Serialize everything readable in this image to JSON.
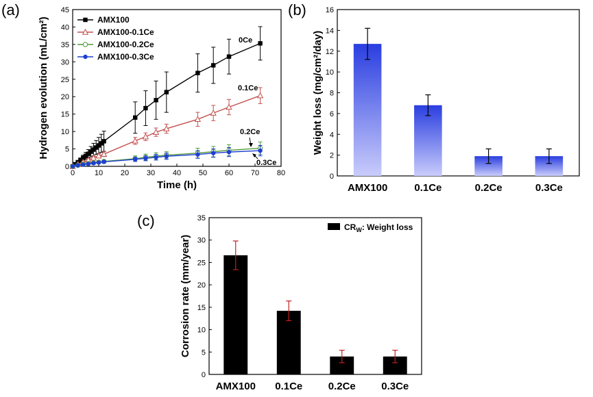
{
  "chart_data": [
    {
      "panel": "(a)",
      "type": "line",
      "xlabel": "Time (h)",
      "ylabel": "Hydrogen evolution (mL/cm²)",
      "xlim": [
        0,
        80
      ],
      "ylim": [
        0,
        45
      ],
      "xticks": [
        0,
        10,
        20,
        30,
        40,
        50,
        60,
        70,
        80
      ],
      "yticks": [
        0,
        5,
        10,
        15,
        20,
        25,
        30,
        35,
        40,
        45
      ],
      "legend_position": "top-left",
      "series": [
        {
          "name": "AMX100",
          "color": "#000000",
          "marker": "filled-square",
          "annotation": "0Ce",
          "x": [
            0,
            1,
            2,
            3,
            4,
            5,
            6,
            7,
            8,
            9,
            10,
            11,
            12,
            24,
            28,
            32,
            36,
            48,
            54,
            60,
            72
          ],
          "y": [
            0,
            0.6,
            1.2,
            1.8,
            2.4,
            3.0,
            3.6,
            4.2,
            4.8,
            5.4,
            6.0,
            6.6,
            7.2,
            14.0,
            16.7,
            19.0,
            21.3,
            26.8,
            29.0,
            31.5,
            35.3
          ],
          "err": [
            0,
            0.2,
            0.4,
            0.6,
            0.8,
            1.0,
            1.2,
            1.5,
            1.8,
            2.0,
            2.3,
            2.6,
            2.9,
            4.5,
            5.0,
            5.5,
            5.8,
            5.5,
            5.2,
            5.0,
            4.8
          ]
        },
        {
          "name": "AMX100-0.1Ce",
          "color": "#c0504d",
          "marker": "open-triangle",
          "annotation": "0.1Ce",
          "x": [
            0,
            2,
            4,
            6,
            8,
            10,
            12,
            24,
            28,
            32,
            36,
            48,
            54,
            60,
            72
          ],
          "y": [
            0,
            0.6,
            1.2,
            1.8,
            2.4,
            3.0,
            3.5,
            7.3,
            8.5,
            9.8,
            10.8,
            13.5,
            15.3,
            17.0,
            20.3
          ],
          "err": [
            0,
            0.2,
            0.3,
            0.4,
            0.5,
            0.6,
            0.7,
            1.0,
            1.1,
            1.2,
            1.3,
            2.0,
            2.2,
            2.2,
            2.3
          ]
        },
        {
          "name": "AMX100-0.2Ce",
          "color": "#4f9a3a",
          "marker": "open-circle",
          "annotation": "0.2Ce",
          "x": [
            0,
            2,
            4,
            6,
            8,
            10,
            12,
            24,
            28,
            32,
            36,
            48,
            54,
            60,
            72
          ],
          "y": [
            0,
            0.3,
            0.6,
            0.8,
            1.0,
            1.2,
            1.4,
            2.2,
            2.6,
            2.9,
            3.2,
            3.8,
            4.2,
            4.6,
            5.2
          ],
          "err": [
            0,
            0.1,
            0.2,
            0.2,
            0.3,
            0.3,
            0.4,
            0.8,
            0.9,
            1.0,
            1.0,
            1.4,
            1.5,
            1.6,
            1.8
          ]
        },
        {
          "name": "AMX100-0.3Ce",
          "color": "#1f3fd1",
          "marker": "filled-circle",
          "annotation": "0.3Ce",
          "x": [
            0,
            2,
            4,
            6,
            8,
            10,
            12,
            24,
            28,
            32,
            36,
            48,
            54,
            60,
            72
          ],
          "y": [
            0,
            0.3,
            0.5,
            0.7,
            0.9,
            1.1,
            1.3,
            2.0,
            2.3,
            2.6,
            2.9,
            3.4,
            3.8,
            4.1,
            4.5
          ],
          "err": [
            0,
            0.1,
            0.2,
            0.2,
            0.3,
            0.3,
            0.4,
            0.6,
            0.7,
            0.8,
            0.9,
            1.1,
            1.2,
            1.3,
            1.5
          ]
        }
      ]
    },
    {
      "panel": "(b)",
      "type": "bar",
      "categories": [
        "AMX100",
        "0.1Ce",
        "0.2Ce",
        "0.3Ce"
      ],
      "values": [
        12.7,
        6.8,
        1.9,
        1.9
      ],
      "errors": [
        1.5,
        1.0,
        0.7,
        0.7
      ],
      "xlabel": "",
      "ylabel": "Weight loss (mg/cm²/day)",
      "ylim": [
        0,
        16
      ],
      "yticks": [
        0,
        2,
        4,
        6,
        8,
        10,
        12,
        14,
        16
      ],
      "bar_color_top": "#2a3ee0",
      "bar_color_bottom": "#c9ccfb"
    },
    {
      "panel": "(c)",
      "type": "bar",
      "categories": [
        "AMX100",
        "0.1Ce",
        "0.2Ce",
        "0.3Ce"
      ],
      "values": [
        26.6,
        14.2,
        4.0,
        4.0
      ],
      "errors": [
        3.2,
        2.2,
        1.4,
        1.4
      ],
      "xlabel": "",
      "ylabel": "Corrosion rate (mm/year)",
      "ylim": [
        0,
        35
      ],
      "yticks": [
        0,
        5,
        10,
        15,
        20,
        25,
        30,
        35
      ],
      "legend": "CRw: Weight loss",
      "legend_main": "CR",
      "legend_sub": "W",
      "legend_rest": ": Weight loss",
      "legend_position": "top-right",
      "bar_color": "#000000",
      "error_color": "#c02020"
    }
  ]
}
